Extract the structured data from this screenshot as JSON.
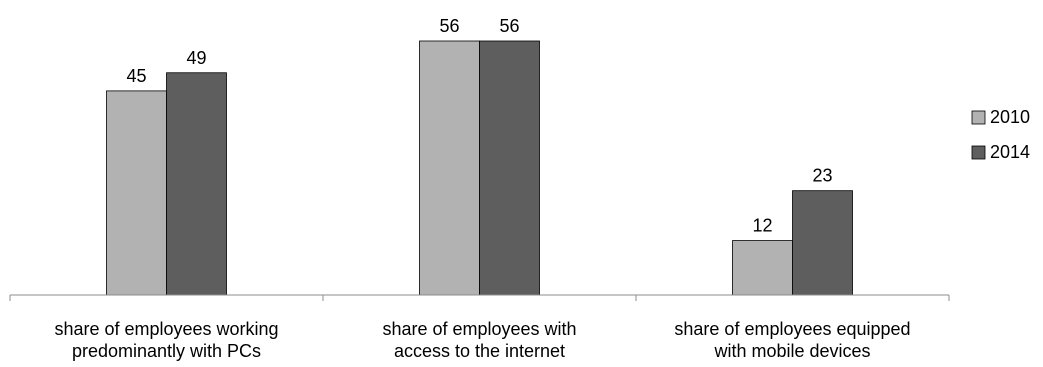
{
  "chart_data": {
    "type": "bar",
    "categories": [
      [
        "share of employees working",
        "predominantly with PCs"
      ],
      [
        "share of employees with",
        "access to the internet"
      ],
      [
        "share of employees equipped",
        "with mobile devices"
      ]
    ],
    "series": [
      {
        "name": "2010",
        "values": [
          45,
          56,
          12
        ],
        "color": "#b2b2b2"
      },
      {
        "name": "2014",
        "values": [
          49,
          56,
          23
        ],
        "color": "#5e5e5e"
      }
    ],
    "ylim": [
      0,
      56
    ],
    "grid": false,
    "data_labels": true,
    "legend": "right",
    "title": "",
    "xlabel": "",
    "ylabel": ""
  }
}
